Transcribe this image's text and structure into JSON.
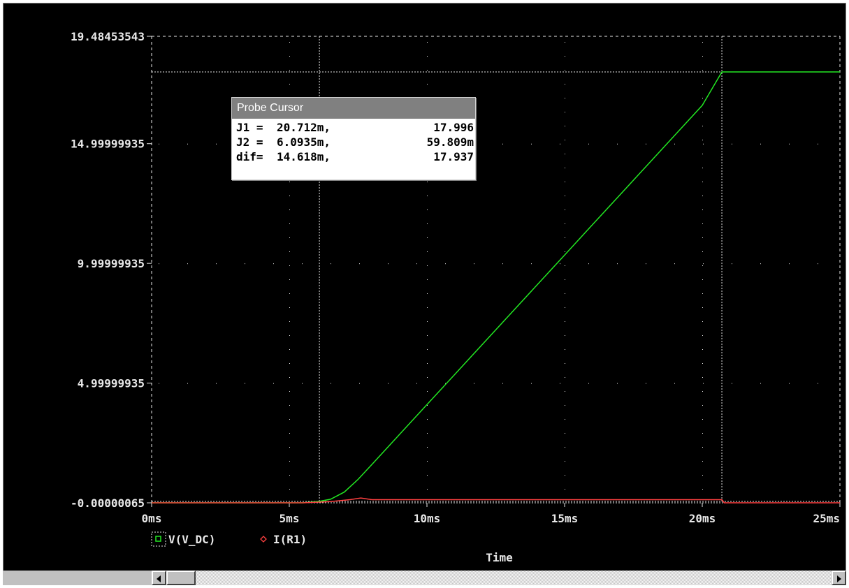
{
  "chart_data": {
    "type": "line",
    "xlabel": "Time",
    "x_ticks": [
      {
        "value": 0,
        "label": "0ms"
      },
      {
        "value": 5,
        "label": "5ms"
      },
      {
        "value": 10,
        "label": "10ms"
      },
      {
        "value": 15,
        "label": "15ms"
      },
      {
        "value": 20,
        "label": "20ms"
      },
      {
        "value": 25,
        "label": "25ms"
      }
    ],
    "y_ticks": [
      {
        "value": 19.48453543,
        "label": "19.48453543"
      },
      {
        "value": 14.99999935,
        "label": "14.99999935"
      },
      {
        "value": 9.99999935,
        "label": "9.99999935"
      },
      {
        "value": 4.99999935,
        "label": "4.99999935"
      },
      {
        "value": -6.5e-07,
        "label": "-0.00000065"
      }
    ],
    "xlim": [
      0,
      25
    ],
    "ylim": [
      -6.5e-07,
      19.48453543
    ],
    "x_unit": "ms",
    "grid": true,
    "series": [
      {
        "name": "V(V_DC)",
        "color": "#22e822",
        "x": [
          0,
          5.5,
          6.0935,
          6.5,
          7.0,
          7.5,
          8.0,
          9,
          10,
          11,
          12,
          13,
          14,
          15,
          16,
          17,
          18,
          19,
          20,
          20.712,
          21,
          22,
          23,
          24,
          25
        ],
        "y": [
          0,
          0,
          0.06,
          0.15,
          0.45,
          0.98,
          1.6,
          2.85,
          4.1,
          5.35,
          6.6,
          7.85,
          9.1,
          10.35,
          11.6,
          12.85,
          14.1,
          15.35,
          16.6,
          17.996,
          17.996,
          17.996,
          17.996,
          17.996,
          17.996
        ]
      },
      {
        "name": "I(R1)",
        "color": "#ff4040",
        "x": [
          0,
          5.5,
          6.5,
          7.2,
          7.6,
          8.0,
          20.6,
          20.712,
          20.8,
          25
        ],
        "y": [
          0,
          0,
          0.05,
          0.13,
          0.2,
          0.13,
          0.13,
          0.13,
          0,
          0
        ]
      }
    ],
    "cursors": [
      {
        "name": "J1",
        "x": 20.712,
        "y": 17.996
      },
      {
        "name": "J2",
        "x": 6.0935,
        "y": 0.059809
      }
    ]
  },
  "probe_cursor": {
    "title": "Probe Cursor",
    "rows": [
      {
        "label": "J1 =",
        "x": "20.712m,",
        "y": "17.996"
      },
      {
        "label": "J2 =",
        "x": "6.0935m,",
        "y": "59.809m"
      },
      {
        "label": "dif=",
        "x": "14.618m,",
        "y": "17.937"
      }
    ]
  },
  "colors": {
    "background": "#000000",
    "axis": "#e8e8e8",
    "grid_dot": "#e8e8e8",
    "cursor_line": "#e8e8e8"
  }
}
